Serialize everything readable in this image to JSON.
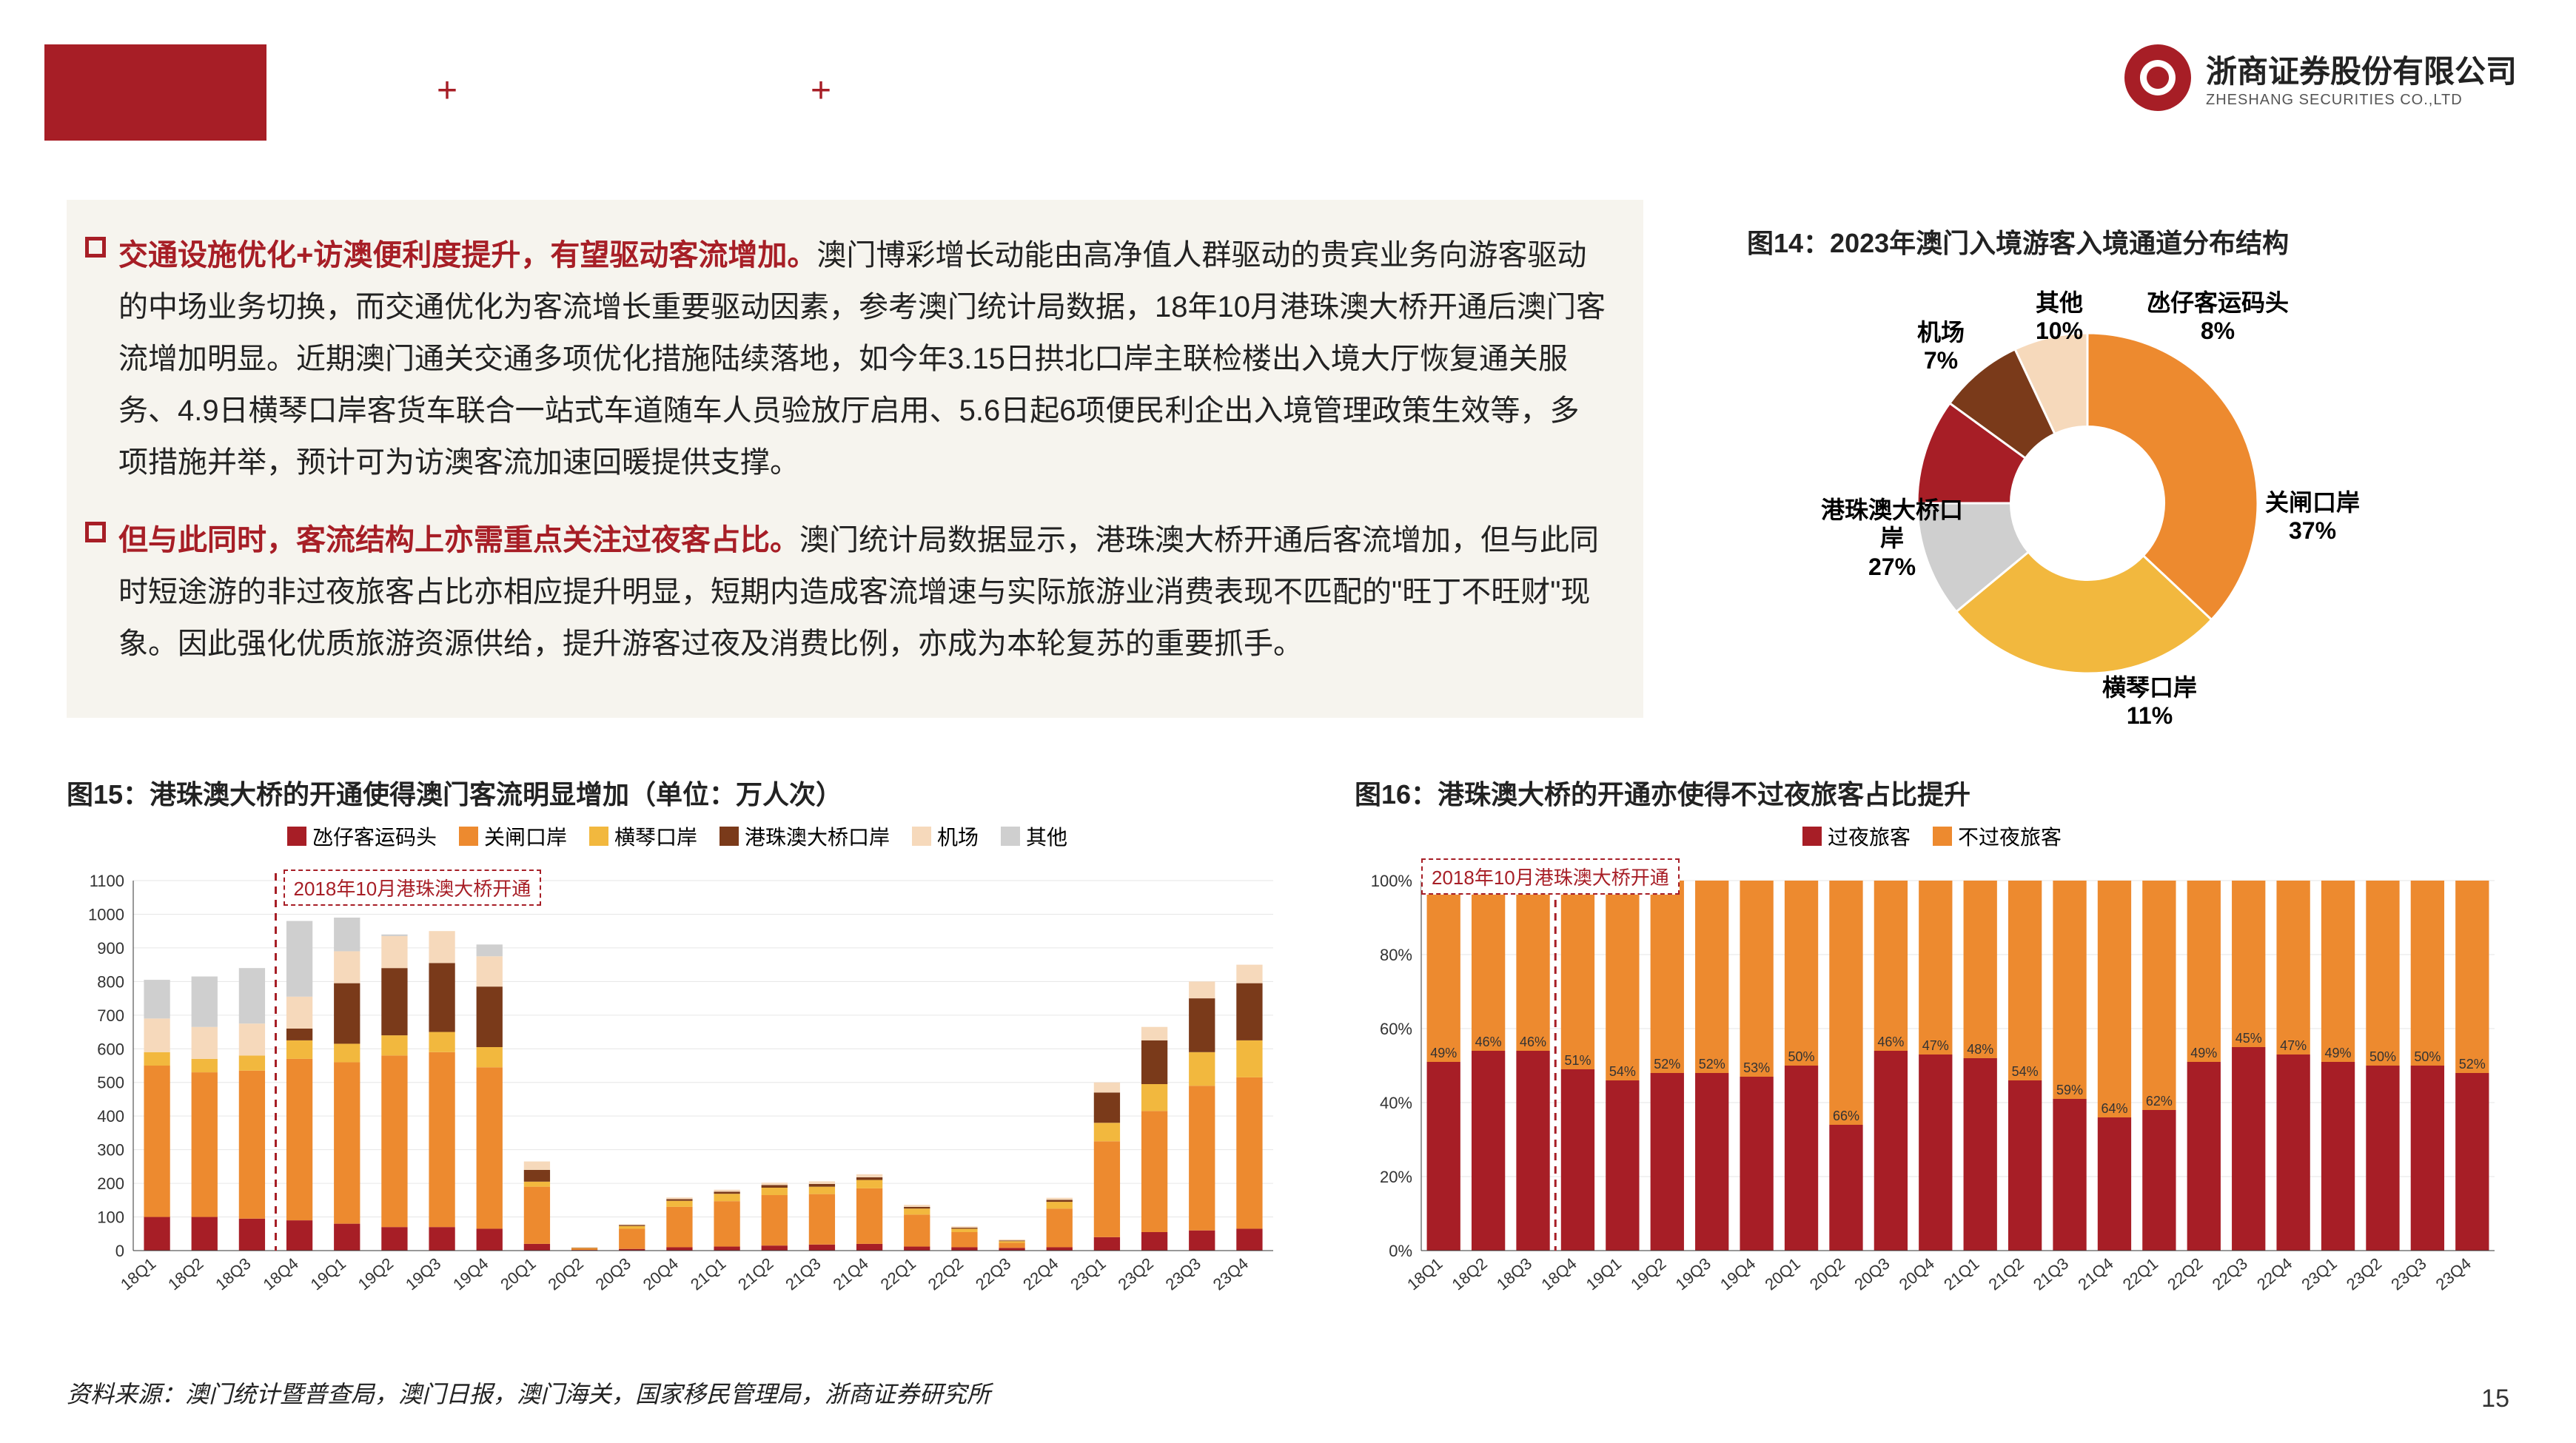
{
  "logo": {
    "cn": "浙商证券股份有限公司",
    "en": "ZHESHANG SECURITIES CO.,LTD"
  },
  "bullets": [
    {
      "lead": "交通设施优化+访澳便利度提升，有望驱动客流增加。",
      "body": "澳门博彩增长动能由高净值人群驱动的贵宾业务向游客驱动的中场业务切换，而交通优化为客流增长重要驱动因素，参考澳门统计局数据，18年10月港珠澳大桥开通后澳门客流增加明显。近期澳门通关交通多项优化措施陆续落地，如今年3.15日拱北口岸主联检楼出入境大厅恢复通关服务、4.9日横琴口岸客货车联合一站式车道随车人员验放厅启用、5.6日起6项便民利企出入境管理政策生效等，多项措施并举，预计可为访澳客流加速回暖提供支撑。"
    },
    {
      "lead": "但与此同时，客流结构上亦需重点关注过夜客占比。",
      "body": "澳门统计局数据显示，港珠澳大桥开通后客流增加，但与此同时短途游的非过夜旅客占比亦相应提升明显，短期内造成客流增速与实际旅游业消费表现不匹配的\"旺丁不旺财\"现象。因此强化优质旅游资源供给，提升游客过夜及消费比例，亦成为本轮复苏的重要抓手。"
    }
  ],
  "fig14": {
    "title": "图14：2023年澳门入境游客入境通道分布结构",
    "type": "donut",
    "inner_radius_ratio": 0.45,
    "slices": [
      {
        "label": "关闸口岸",
        "pct": 37,
        "color": "#ed8a2f",
        "lx": 640,
        "ly": 290
      },
      {
        "label": "港珠澳大桥口岸",
        "pct": 27,
        "color": "#f2b83e",
        "lx": 40,
        "ly": 300
      },
      {
        "label": "横琴口岸",
        "pct": 11,
        "color": "#cfcfcf",
        "lx": 420,
        "ly": 540
      },
      {
        "label": "其他",
        "pct": 10,
        "color": "#a71e26",
        "lx": 330,
        "ly": 20
      },
      {
        "label": "氹仔客运码头",
        "pct": 8,
        "color": "#7a3a1a",
        "lx": 480,
        "ly": 20
      },
      {
        "label": "机场",
        "pct": 7,
        "color": "#f6d9bb",
        "lx": 170,
        "ly": 60
      }
    ]
  },
  "fig15": {
    "title": "图15：港珠澳大桥的开通使得澳门客流明显增加（单位：万人次）",
    "type": "stacked_bar",
    "annotation": "2018年10月港珠澳大桥开通",
    "ylim": [
      0,
      1100
    ],
    "ytick_step": 100,
    "grid_color": "#e6e6e6",
    "axis_color": "#333",
    "bar_width": 0.55,
    "legend": [
      {
        "key": "taipa",
        "label": "氹仔客运码头",
        "color": "#a71e26"
      },
      {
        "key": "gongbei",
        "label": "关闸口岸",
        "color": "#ed8a2f"
      },
      {
        "key": "hengqin",
        "label": "横琴口岸",
        "color": "#f2b83e"
      },
      {
        "key": "hzmb",
        "label": "港珠澳大桥口岸",
        "color": "#7a3a1a"
      },
      {
        "key": "airport",
        "label": "机场",
        "color": "#f6d9bb"
      },
      {
        "key": "other",
        "label": "其他",
        "color": "#cfcfcf"
      }
    ],
    "categories": [
      "18Q1",
      "18Q2",
      "18Q3",
      "18Q4",
      "19Q1",
      "19Q2",
      "19Q3",
      "19Q4",
      "20Q1",
      "20Q2",
      "20Q3",
      "20Q4",
      "21Q1",
      "21Q2",
      "21Q3",
      "21Q4",
      "22Q1",
      "22Q2",
      "22Q3",
      "22Q4",
      "23Q1",
      "23Q2",
      "23Q3",
      "23Q4"
    ],
    "stacks": {
      "taipa": [
        100,
        100,
        95,
        90,
        80,
        70,
        70,
        65,
        20,
        2,
        5,
        10,
        12,
        15,
        18,
        20,
        12,
        10,
        8,
        10,
        40,
        55,
        60,
        65
      ],
      "gongbei": [
        450,
        430,
        440,
        480,
        480,
        510,
        520,
        480,
        170,
        5,
        60,
        120,
        135,
        150,
        150,
        165,
        95,
        45,
        15,
        115,
        285,
        360,
        430,
        450
      ],
      "hengqin": [
        40,
        40,
        45,
        55,
        55,
        60,
        60,
        60,
        15,
        1,
        8,
        18,
        22,
        22,
        22,
        25,
        18,
        10,
        5,
        20,
        55,
        80,
        100,
        110
      ],
      "hzmb": [
        0,
        0,
        0,
        35,
        180,
        200,
        205,
        180,
        35,
        1,
        3,
        5,
        6,
        8,
        8,
        8,
        5,
        3,
        2,
        6,
        90,
        130,
        160,
        170
      ],
      "airport": [
        100,
        95,
        95,
        95,
        95,
        95,
        95,
        90,
        25,
        1,
        2,
        5,
        6,
        7,
        8,
        9,
        6,
        4,
        3,
        6,
        30,
        40,
        50,
        55
      ],
      "other": [
        115,
        150,
        165,
        225,
        100,
        5,
        0,
        35,
        0,
        0,
        0,
        0,
        0,
        0,
        0,
        0,
        0,
        0,
        0,
        0,
        0,
        0,
        0,
        0
      ]
    },
    "vline_after_index": 2
  },
  "fig16": {
    "title": "图16：港珠澳大桥的开通亦使得不过夜旅客占比提升",
    "type": "stacked_bar_pct",
    "annotation": "2018年10月港珠澳大桥开通",
    "ylim": [
      0,
      100
    ],
    "ytick_step": 20,
    "grid_color": "#e6e6e6",
    "axis_color": "#333",
    "bar_width": 0.75,
    "legend": [
      {
        "key": "overnight",
        "label": "过夜旅客",
        "color": "#a71e26"
      },
      {
        "key": "nonovernight",
        "label": "不过夜旅客",
        "color": "#ed8a2f"
      }
    ],
    "categories": [
      "18Q1",
      "18Q2",
      "18Q3",
      "18Q4",
      "19Q1",
      "19Q2",
      "19Q3",
      "19Q4",
      "20Q1",
      "20Q2",
      "20Q3",
      "20Q4",
      "21Q1",
      "21Q2",
      "21Q3",
      "21Q4",
      "22Q1",
      "22Q2",
      "22Q3",
      "22Q4",
      "23Q1",
      "23Q2",
      "23Q3",
      "23Q4"
    ],
    "overnight_pct": [
      51,
      54,
      54,
      49,
      46,
      48,
      48,
      47,
      50,
      34,
      54,
      53,
      52,
      46,
      41,
      36,
      38,
      51,
      55,
      53,
      51,
      50,
      50,
      48
    ],
    "labels_pct": [
      49,
      46,
      46,
      51,
      54,
      52,
      52,
      53,
      50,
      66,
      46,
      47,
      48,
      54,
      59,
      64,
      62,
      49,
      45,
      47,
      49,
      50,
      50,
      52
    ],
    "vline_after_index": 2
  },
  "source": "资料来源：澳门统计暨普查局，澳门日报，澳门海关，国家移民管理局，浙商证券研究所",
  "page": "15"
}
